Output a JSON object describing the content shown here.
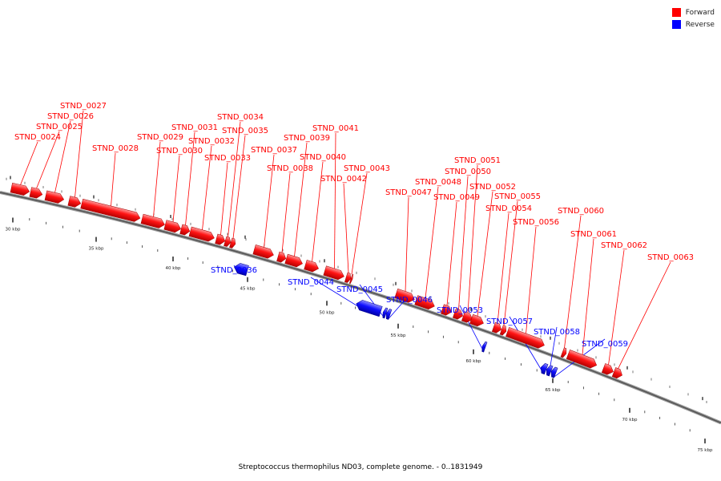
{
  "legend": [
    {
      "label": "Forward",
      "color": "#ff0000"
    },
    {
      "label": "Reverse",
      "color": "#0000ff"
    }
  ],
  "caption": "Streptococcus thermophilus ND03, complete genome. - 0..1831949",
  "ticks": [
    "30 kbp",
    "35 kbp",
    "40 kbp",
    "45 kbp",
    "50 kbp",
    "55 kbp",
    "60 kbp",
    "65 kbp",
    "70 kbp",
    "75 kbp"
  ],
  "genes": [
    {
      "name": "STND_0024",
      "strand": "forward"
    },
    {
      "name": "STND_0025",
      "strand": "forward"
    },
    {
      "name": "STND_0026",
      "strand": "forward"
    },
    {
      "name": "STND_0027",
      "strand": "forward"
    },
    {
      "name": "STND_0028",
      "strand": "forward"
    },
    {
      "name": "STND_0029",
      "strand": "forward"
    },
    {
      "name": "STND_0030",
      "strand": "forward"
    },
    {
      "name": "STND_0031",
      "strand": "forward"
    },
    {
      "name": "STND_0032",
      "strand": "forward"
    },
    {
      "name": "STND_0033",
      "strand": "forward"
    },
    {
      "name": "STND_0034",
      "strand": "forward"
    },
    {
      "name": "STND_0035",
      "strand": "forward"
    },
    {
      "name": "STND_0036",
      "strand": "reverse"
    },
    {
      "name": "STND_0037",
      "strand": "forward"
    },
    {
      "name": "STND_0038",
      "strand": "forward"
    },
    {
      "name": "STND_0039",
      "strand": "forward"
    },
    {
      "name": "STND_0040",
      "strand": "forward"
    },
    {
      "name": "STND_0041",
      "strand": "forward"
    },
    {
      "name": "STND_0042",
      "strand": "forward"
    },
    {
      "name": "STND_0043",
      "strand": "forward"
    },
    {
      "name": "STND_0044",
      "strand": "reverse"
    },
    {
      "name": "STND_0045",
      "strand": "reverse"
    },
    {
      "name": "STND_0046",
      "strand": "reverse"
    },
    {
      "name": "STND_0047",
      "strand": "forward"
    },
    {
      "name": "STND_0048",
      "strand": "forward"
    },
    {
      "name": "STND_0049",
      "strand": "forward"
    },
    {
      "name": "STND_0050",
      "strand": "forward"
    },
    {
      "name": "STND_0051",
      "strand": "forward"
    },
    {
      "name": "STND_0052",
      "strand": "forward"
    },
    {
      "name": "STND_0053",
      "strand": "reverse"
    },
    {
      "name": "STND_0054",
      "strand": "forward"
    },
    {
      "name": "STND_0055",
      "strand": "forward"
    },
    {
      "name": "STND_0056",
      "strand": "forward"
    },
    {
      "name": "STND_0057",
      "strand": "reverse"
    },
    {
      "name": "STND_0058",
      "strand": "reverse"
    },
    {
      "name": "STND_0059",
      "strand": "reverse"
    },
    {
      "name": "STND_0060",
      "strand": "forward"
    },
    {
      "name": "STND_0061",
      "strand": "forward"
    },
    {
      "name": "STND_0062",
      "strand": "forward"
    },
    {
      "name": "STND_0063",
      "strand": "forward"
    }
  ]
}
